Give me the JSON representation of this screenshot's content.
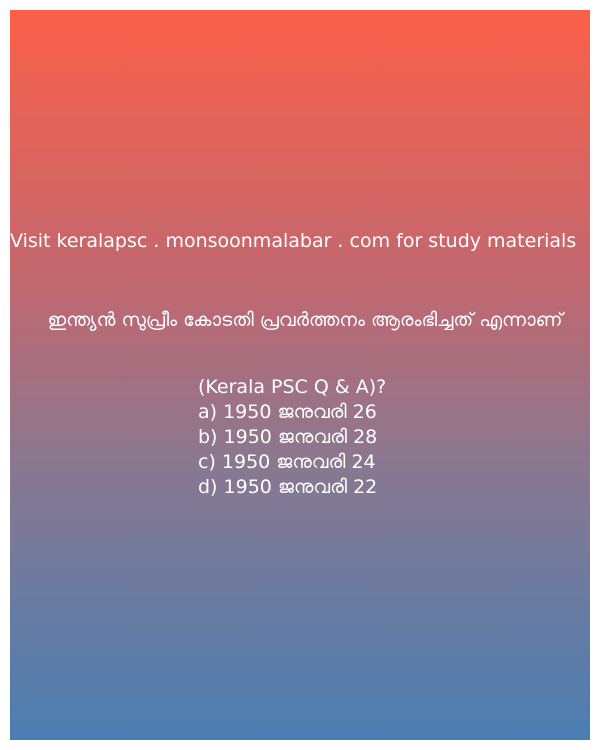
{
  "promo": {
    "text": "Visit keralapsc . monsoonmalabar . com for study materials"
  },
  "question": {
    "text": "ഇന്ത്യൻ സുപ്രീം കോടതി പ്രവർത്തനം ആരംഭിച്ചത് എന്നാണ്",
    "tag": "(Kerala PSC Q & A)?"
  },
  "options": [
    "a) 1950 ജനുവരി 26",
    "b) 1950 ജനുവരി 28",
    "c) 1950 ജനുവരി 24",
    "d) 1950 ജനുവരി 22"
  ],
  "colors": {
    "gradient_top": "#fb6049",
    "gradient_bottom": "#4a7eb2",
    "text": "#ffffff"
  }
}
